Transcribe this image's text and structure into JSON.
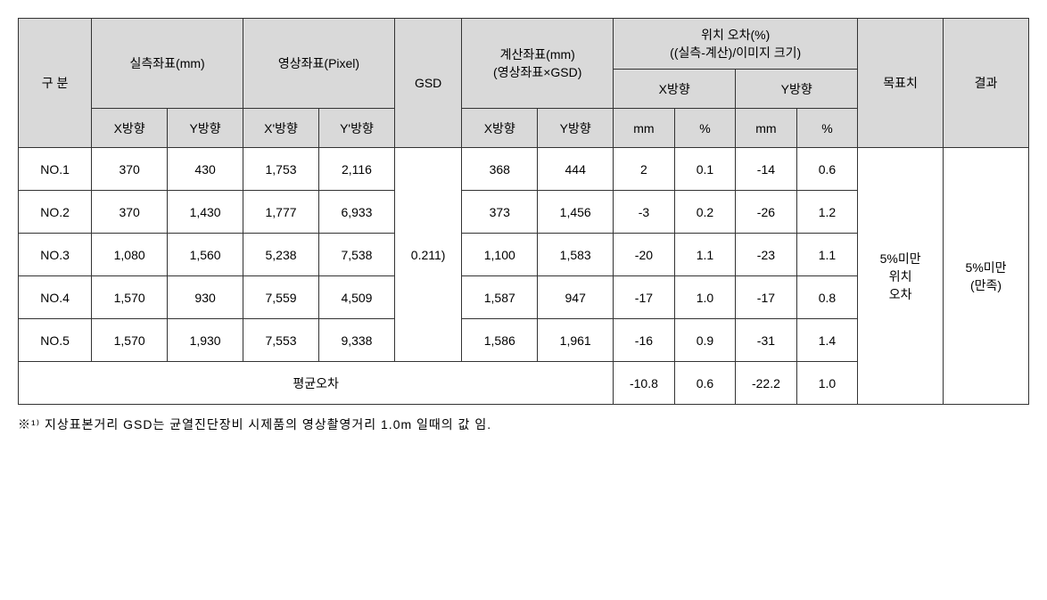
{
  "table": {
    "headers": {
      "gubun": "구 분",
      "measured_coord": "실측좌표(mm)",
      "image_coord": "영상좌표(Pixel)",
      "gsd": "GSD",
      "calc_coord_line1": "계산좌표(mm)",
      "calc_coord_line2": "(영상좌표×GSD)",
      "pos_error_line1": "위치 오차(%)",
      "pos_error_line2": "((실측-계산)/이미지 크기)",
      "target": "목표치",
      "result": "결과",
      "x_dir": "X방향",
      "y_dir": "Y방향",
      "x_prime": "X'방향",
      "y_prime": "Y'방향",
      "mm": "mm",
      "pct": "%"
    },
    "rows": [
      {
        "no": "NO.1",
        "mx": "370",
        "my": "430",
        "ix": "1,753",
        "iy": "2,116",
        "cx": "368",
        "cy": "444",
        "exmm": "2",
        "expc": "0.1",
        "eymm": "-14",
        "eypc": "0.6"
      },
      {
        "no": "NO.2",
        "mx": "370",
        "my": "1,430",
        "ix": "1,777",
        "iy": "6,933",
        "cx": "373",
        "cy": "1,456",
        "exmm": "-3",
        "expc": "0.2",
        "eymm": "-26",
        "eypc": "1.2"
      },
      {
        "no": "NO.3",
        "mx": "1,080",
        "my": "1,560",
        "ix": "5,238",
        "iy": "7,538",
        "cx": "1,100",
        "cy": "1,583",
        "exmm": "-20",
        "expc": "1.1",
        "eymm": "-23",
        "eypc": "1.1"
      },
      {
        "no": "NO.4",
        "mx": "1,570",
        "my": "930",
        "ix": "7,559",
        "iy": "4,509",
        "cx": "1,587",
        "cy": "947",
        "exmm": "-17",
        "expc": "1.0",
        "eymm": "-17",
        "eypc": "0.8"
      },
      {
        "no": "NO.5",
        "mx": "1,570",
        "my": "1,930",
        "ix": "7,553",
        "iy": "9,338",
        "cx": "1,586",
        "cy": "1,961",
        "exmm": "-16",
        "expc": "0.9",
        "eymm": "-31",
        "eypc": "1.4"
      }
    ],
    "gsd_value": "0.211)",
    "avg_label": "평균오차",
    "avg": {
      "exmm": "-10.8",
      "expc": "0.6",
      "eymm": "-22.2",
      "eypc": "1.0"
    },
    "target_text_line1": "5%미만",
    "target_text_line2": "위치",
    "target_text_line3": "오차",
    "result_text_line1": "5%미만",
    "result_text_line2": "(만족)"
  },
  "footnote": "※¹⁾ 지상표본거리 GSD는 균열진단장비 시제품의 영상촬영거리 1.0m 일때의 값 임.",
  "styling": {
    "header_bg": "#d9d9d9",
    "border_color": "#333333",
    "text_color": "#000000",
    "font_family": "Malgun Gothic",
    "font_size_base": 14
  }
}
